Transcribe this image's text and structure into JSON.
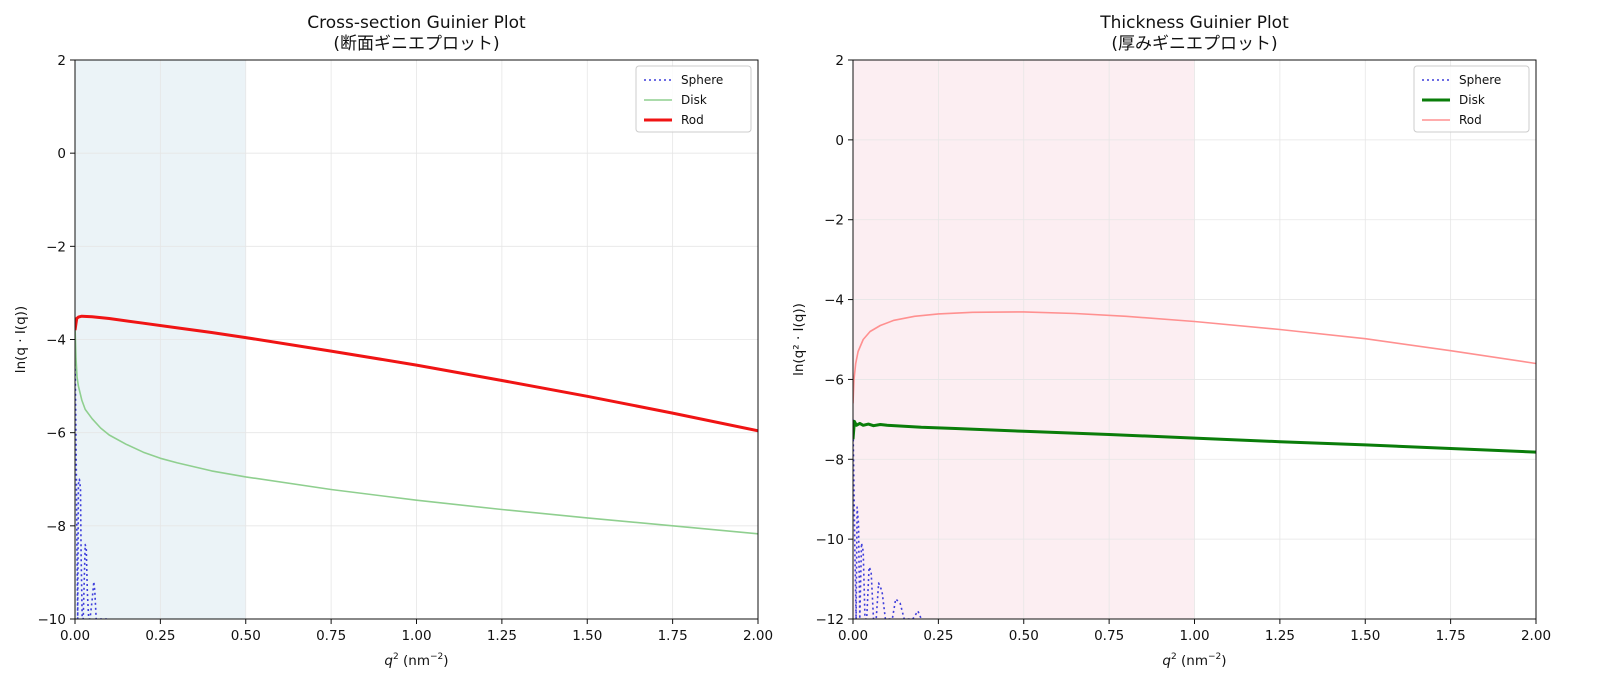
{
  "chart_data": [
    {
      "type": "line",
      "title": "Cross-section Guinier Plot",
      "subtitle": "(断面ギニエプロット)",
      "xlabel_main": "q",
      "xlabel_sup": "2",
      "xlabel_unit": " (nm",
      "xlabel_unit_sup": "−2",
      "xlabel_close": ")",
      "ylabel": "ln(q · I(q))",
      "xlim": [
        0,
        2.0
      ],
      "ylim": [
        -10,
        2
      ],
      "xticks": [
        "0.00",
        "0.25",
        "0.50",
        "0.75",
        "1.00",
        "1.25",
        "1.50",
        "1.75",
        "2.00"
      ],
      "xtick_values": [
        0,
        0.25,
        0.5,
        0.75,
        1.0,
        1.25,
        1.5,
        1.75,
        2.0
      ],
      "yticks": [
        "−10",
        "−8",
        "−6",
        "−4",
        "−2",
        "0",
        "2"
      ],
      "ytick_values": [
        -10,
        -8,
        -6,
        -4,
        -2,
        0,
        2
      ],
      "grid": true,
      "legend_position": "top-right",
      "shaded_region": {
        "x": [
          0,
          0.5
        ],
        "color": "#dbe9f1"
      },
      "series": [
        {
          "name": "Sphere",
          "color": "#3d3ddb",
          "style": "dotted",
          "width": 1.6,
          "x": [
            0.0,
            0.002,
            0.004,
            0.006,
            0.008,
            0.01,
            0.013,
            0.016,
            0.018,
            0.021,
            0.024,
            0.027,
            0.03,
            0.033,
            0.036,
            0.04,
            0.044,
            0.05,
            0.055,
            0.058,
            0.062,
            0.066,
            0.072,
            0.08,
            0.09,
            0.1
          ],
          "y": [
            -4.2,
            -5.5,
            -7.0,
            -8.6,
            -10.0,
            -7.1,
            -7.0,
            -7.2,
            -8.6,
            -10.0,
            -10.0,
            -9.2,
            -8.4,
            -8.5,
            -9.4,
            -10.0,
            -10.0,
            -9.6,
            -9.2,
            -9.4,
            -10.0,
            -10.0,
            -10.0,
            -10.0,
            -10.0,
            -10.0
          ]
        },
        {
          "name": "Disk",
          "color": "#8fcf8f",
          "style": "solid",
          "width": 1.6,
          "x": [
            0.0,
            0.003,
            0.006,
            0.01,
            0.02,
            0.03,
            0.05,
            0.075,
            0.1,
            0.15,
            0.2,
            0.25,
            0.3,
            0.4,
            0.5,
            0.75,
            1.0,
            1.25,
            1.5,
            1.75,
            2.0
          ],
          "y": [
            -3.7,
            -4.4,
            -4.8,
            -5.0,
            -5.3,
            -5.5,
            -5.7,
            -5.9,
            -6.05,
            -6.25,
            -6.42,
            -6.55,
            -6.65,
            -6.82,
            -6.95,
            -7.22,
            -7.45,
            -7.65,
            -7.83,
            -8.0,
            -8.17
          ]
        },
        {
          "name": "Rod",
          "color": "#f01414",
          "style": "solid",
          "width": 3,
          "x": [
            0.0,
            0.005,
            0.01,
            0.02,
            0.05,
            0.1,
            0.2,
            0.3,
            0.4,
            0.5,
            0.75,
            1.0,
            1.25,
            1.5,
            1.75,
            2.0
          ],
          "y": [
            -3.8,
            -3.55,
            -3.52,
            -3.5,
            -3.51,
            -3.55,
            -3.65,
            -3.75,
            -3.85,
            -3.96,
            -4.25,
            -4.55,
            -4.88,
            -5.22,
            -5.58,
            -5.96
          ]
        }
      ]
    },
    {
      "type": "line",
      "title": "Thickness Guinier Plot",
      "subtitle": "(厚みギニエプロット)",
      "xlabel_main": "q",
      "xlabel_sup": "2",
      "xlabel_unit": " (nm",
      "xlabel_unit_sup": "−2",
      "xlabel_close": ")",
      "ylabel": "ln(q² · I(q))",
      "xlim": [
        0,
        2.0
      ],
      "ylim": [
        -12,
        2
      ],
      "xticks": [
        "0.00",
        "0.25",
        "0.50",
        "0.75",
        "1.00",
        "1.25",
        "1.50",
        "1.75",
        "2.00"
      ],
      "xtick_values": [
        0,
        0.25,
        0.5,
        0.75,
        1.0,
        1.25,
        1.5,
        1.75,
        2.0
      ],
      "yticks": [
        "−12",
        "−10",
        "−8",
        "−6",
        "−4",
        "−2",
        "0",
        "2"
      ],
      "ytick_values": [
        -12,
        -10,
        -8,
        -6,
        -4,
        -2,
        0,
        2
      ],
      "grid": true,
      "legend_position": "top-right",
      "shaded_region": {
        "x": [
          0,
          1.0
        ],
        "color": "#f9e0e8"
      },
      "series": [
        {
          "name": "Sphere",
          "color": "#3d3ddb",
          "style": "dotted",
          "width": 1.6,
          "x": [
            0.0,
            0.003,
            0.006,
            0.009,
            0.012,
            0.016,
            0.02,
            0.025,
            0.03,
            0.035,
            0.04,
            0.047,
            0.053,
            0.06,
            0.068,
            0.075,
            0.085,
            0.095,
            0.105,
            0.115,
            0.125,
            0.138,
            0.15,
            0.16,
            0.175,
            0.19,
            0.2
          ],
          "y": [
            -7.0,
            -8.8,
            -10.5,
            -12.0,
            -9.2,
            -9.6,
            -12.0,
            -10.1,
            -10.3,
            -12.0,
            -12.0,
            -10.7,
            -10.8,
            -12.0,
            -12.0,
            -11.1,
            -11.3,
            -12.0,
            -12.0,
            -12.0,
            -11.5,
            -11.6,
            -12.0,
            -12.0,
            -12.0,
            -11.8,
            -12.0
          ]
        },
        {
          "name": "Disk",
          "color": "#0a7d0a",
          "style": "solid",
          "width": 3,
          "x": [
            0.0,
            0.004,
            0.01,
            0.02,
            0.03,
            0.045,
            0.06,
            0.08,
            0.1,
            0.2,
            0.3,
            0.5,
            0.75,
            1.0,
            1.25,
            1.5,
            1.75,
            2.0
          ],
          "y": [
            -7.5,
            -7.05,
            -7.15,
            -7.1,
            -7.15,
            -7.12,
            -7.16,
            -7.13,
            -7.15,
            -7.2,
            -7.23,
            -7.3,
            -7.38,
            -7.47,
            -7.56,
            -7.64,
            -7.73,
            -7.82
          ]
        },
        {
          "name": "Rod",
          "color": "#ff9090",
          "style": "solid",
          "width": 1.6,
          "x": [
            0.0,
            0.003,
            0.008,
            0.015,
            0.03,
            0.05,
            0.08,
            0.12,
            0.18,
            0.25,
            0.35,
            0.5,
            0.65,
            0.8,
            1.0,
            1.25,
            1.5,
            1.75,
            2.0
          ],
          "y": [
            -6.6,
            -6.0,
            -5.6,
            -5.3,
            -5.0,
            -4.8,
            -4.65,
            -4.52,
            -4.42,
            -4.36,
            -4.32,
            -4.31,
            -4.35,
            -4.42,
            -4.55,
            -4.75,
            -4.98,
            -5.28,
            -5.6
          ]
        }
      ]
    }
  ]
}
